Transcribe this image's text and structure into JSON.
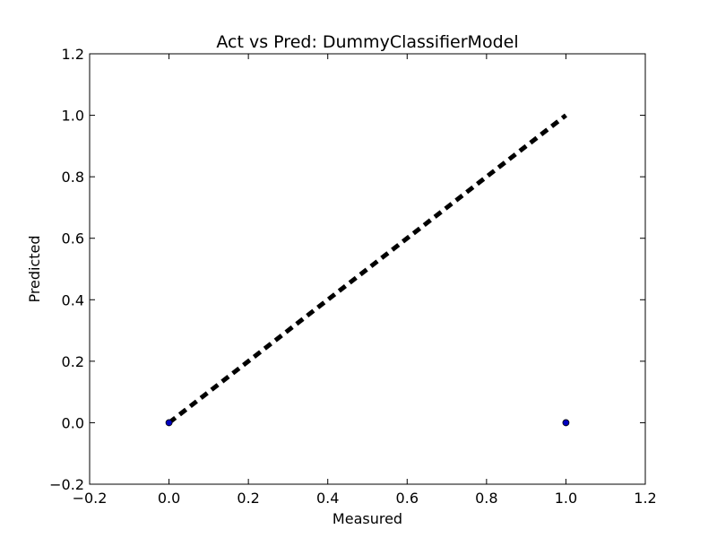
{
  "chart_data": {
    "type": "scatter",
    "title": "Act vs Pred: DummyClassifierModel",
    "xlabel": "Measured",
    "ylabel": "Predicted",
    "xlim": [
      -0.2,
      1.2
    ],
    "ylim": [
      -0.2,
      1.2
    ],
    "xticks": [
      -0.2,
      0.0,
      0.2,
      0.4,
      0.6,
      0.8,
      1.0,
      1.2
    ],
    "yticks": [
      -0.2,
      0.0,
      0.2,
      0.4,
      0.6,
      0.8,
      1.0,
      1.2
    ],
    "xtick_labels": [
      "−0.2",
      "0.0",
      "0.2",
      "0.4",
      "0.6",
      "0.8",
      "1.0",
      "1.2"
    ],
    "ytick_labels": [
      "−0.2",
      "0.0",
      "0.2",
      "0.4",
      "0.6",
      "0.8",
      "1.0",
      "1.2"
    ],
    "grid": false,
    "points": [
      {
        "x": 0.0,
        "y": 0.0
      },
      {
        "x": 1.0,
        "y": 0.0
      }
    ],
    "reference_line": {
      "x": [
        0.0,
        1.0
      ],
      "y": [
        0.0,
        1.0
      ],
      "style": "dashed"
    },
    "colors": {
      "points": "#0000bf",
      "reference_line": "#000000",
      "axes": "#000000"
    }
  }
}
